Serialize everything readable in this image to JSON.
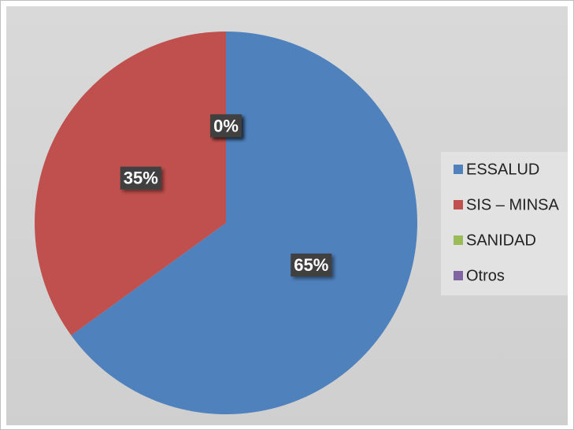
{
  "chart_data": {
    "type": "pie",
    "categories": [
      "ESSALUD",
      "SIS – MINSA",
      "SANIDAD",
      "Otros"
    ],
    "values": [
      65,
      35,
      0,
      0
    ],
    "value_labels": [
      "65%",
      "35%",
      "0%",
      "0%"
    ],
    "colors": [
      "#4f81bd",
      "#c0504d",
      "#9bbb59",
      "#8064a2"
    ],
    "legend": "right"
  }
}
